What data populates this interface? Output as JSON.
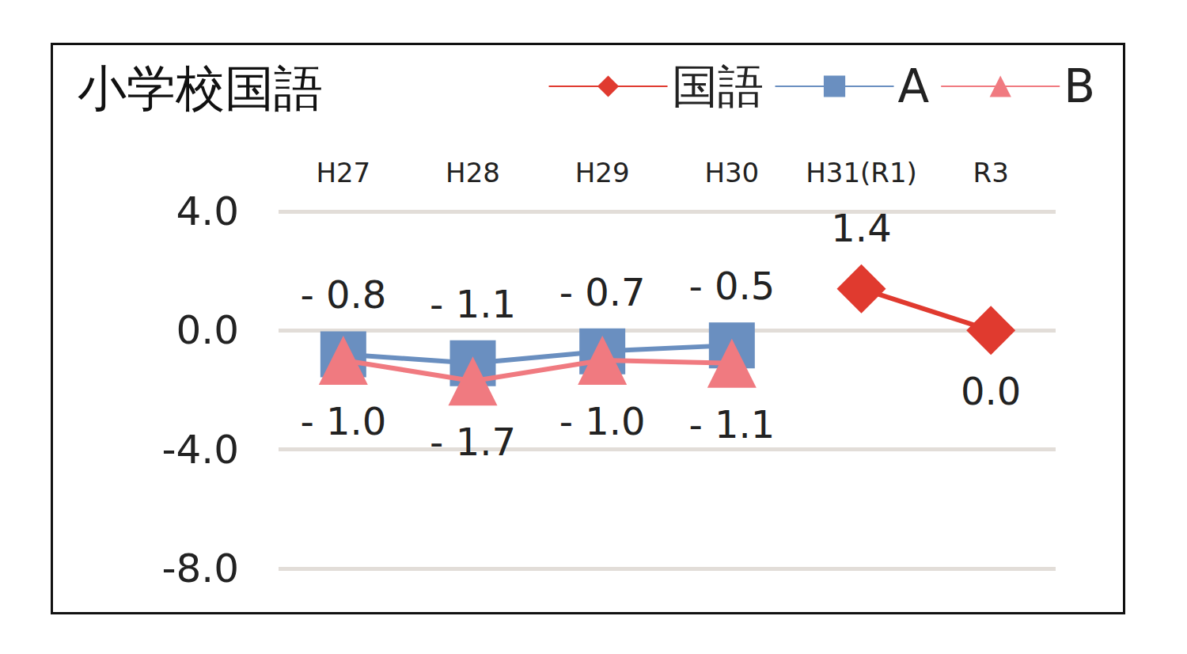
{
  "chart_data": {
    "type": "line",
    "title": "小学校国語",
    "categories": [
      "H27",
      "H28",
      "H29",
      "H30",
      "H31(R1)",
      "R3"
    ],
    "series": [
      {
        "name": "国語",
        "color": "#e03a2f",
        "marker": "diamond",
        "values": [
          null,
          null,
          null,
          null,
          1.4,
          0.0
        ],
        "value_labels": [
          null,
          null,
          null,
          null,
          "1.4",
          "0.0"
        ]
      },
      {
        "name": "A",
        "color": "#6a8fc0",
        "marker": "square",
        "values": [
          -0.8,
          -1.1,
          -0.7,
          -0.5,
          null,
          null
        ],
        "value_labels": [
          "- 0.8",
          "- 1.1",
          "- 0.7",
          "- 0.5",
          null,
          null
        ]
      },
      {
        "name": "B",
        "color": "#f07a80",
        "marker": "triangle",
        "values": [
          -1.0,
          -1.7,
          -1.0,
          -1.1,
          null,
          null
        ],
        "value_labels": [
          "- 1.0",
          "- 1.7",
          "- 1.0",
          "- 1.1",
          null,
          null
        ]
      }
    ],
    "ylim": [
      -8,
      4
    ],
    "yticks": [
      {
        "value": -8,
        "label": "-8.0"
      },
      {
        "value": -4,
        "label": "-4.0"
      },
      {
        "value": 0,
        "label": "0.0"
      },
      {
        "value": 4,
        "label": "4.0"
      }
    ],
    "grid": true,
    "legend": "top-right",
    "data_labels": true
  }
}
